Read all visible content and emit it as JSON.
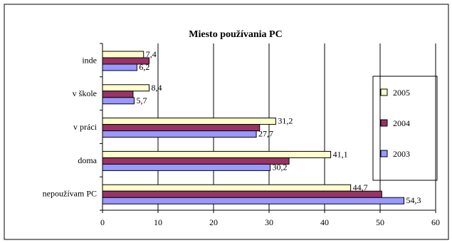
{
  "chart_data": {
    "type": "bar",
    "orientation": "horizontal",
    "title": "Miesto používania PC",
    "categories": [
      "nepoužívam PC",
      "doma",
      "v práci",
      "v škole",
      "inde"
    ],
    "series": [
      {
        "name": "2005",
        "color": "#ffffcc",
        "values": [
          44.7,
          41.1,
          31.2,
          8.4,
          7.4
        ],
        "labels": [
          "44,7",
          "41,1",
          "31,2",
          "8,4",
          "7,4"
        ]
      },
      {
        "name": "2004",
        "color": "#993366",
        "values": [
          50.3,
          33.6,
          28.3,
          5.5,
          8.4
        ],
        "labels": []
      },
      {
        "name": "2003",
        "color": "#9999ff",
        "values": [
          54.3,
          30.2,
          27.7,
          5.7,
          6.2
        ],
        "labels": [
          "54,3",
          "30,2",
          "27,7",
          "5,7",
          "6,2"
        ]
      }
    ],
    "xlim": [
      0,
      60
    ],
    "xticks": [
      "0",
      "10",
      "20",
      "30",
      "40",
      "50",
      "60"
    ],
    "grid": true,
    "legend": "right"
  }
}
